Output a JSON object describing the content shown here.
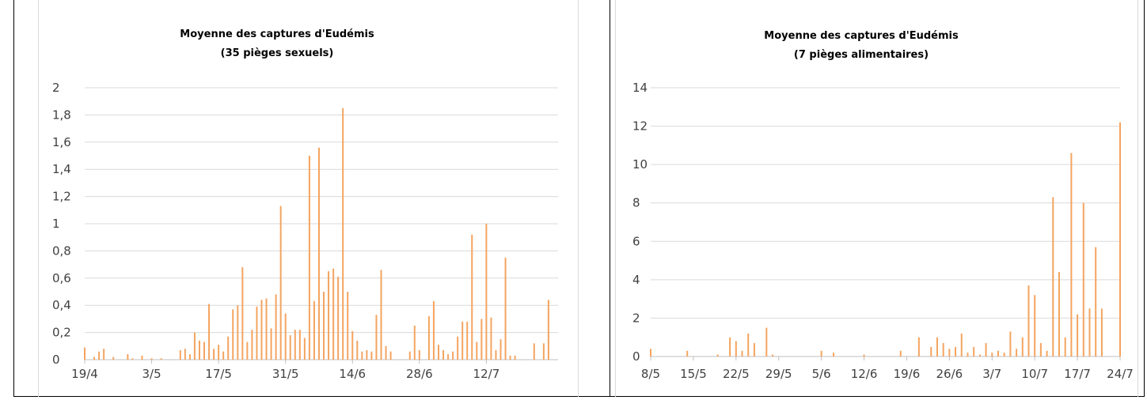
{
  "charts": [
    {
      "title_line1": "Moyenne des captures d'Eudémis",
      "title_line2": "(35 pièges sexuels)"
    },
    {
      "title_line1": "Moyenne des captures d'Eudémis",
      "title_line2": "(7 pièges alimentaires)"
    }
  ],
  "chart_data": [
    {
      "type": "bar",
      "title": "Moyenne des captures d'Eudémis (35 pièges sexuels)",
      "xlabel": "",
      "ylabel": "",
      "x_tick_labels": [
        "19/4",
        "3/5",
        "17/5",
        "31/5",
        "14/6",
        "28/6",
        "12/7"
      ],
      "x_tick_days": [
        109,
        123,
        137,
        151,
        165,
        179,
        193
      ],
      "y_tick_labels": [
        "0",
        "0,2",
        "0,4",
        "0,6",
        "0,8",
        "1",
        "1,2",
        "1,4",
        "1,6",
        "1,8",
        "2"
      ],
      "ylim": [
        0,
        2
      ],
      "x_range_days": [
        109,
        208
      ],
      "grid": true,
      "color": "#f4a460",
      "days": [
        109,
        111,
        112,
        113,
        115,
        118,
        119,
        121,
        123,
        125,
        129,
        130,
        131,
        132,
        133,
        134,
        135,
        136,
        137,
        138,
        139,
        140,
        141,
        142,
        143,
        144,
        145,
        146,
        147,
        148,
        149,
        150,
        151,
        152,
        153,
        154,
        155,
        156,
        157,
        158,
        159,
        160,
        161,
        162,
        163,
        164,
        165,
        166,
        167,
        168,
        169,
        170,
        171,
        172,
        173,
        177,
        178,
        179,
        181,
        182,
        183,
        184,
        185,
        186,
        187,
        188,
        189,
        190,
        191,
        192,
        193,
        194,
        195,
        196,
        197,
        198,
        199,
        203,
        205,
        206
      ],
      "values": [
        0.09,
        0.02,
        0.06,
        0.08,
        0.02,
        0.04,
        0.01,
        0.03,
        0.01,
        0.01,
        0.07,
        0.08,
        0.04,
        0.2,
        0.14,
        0.13,
        0.41,
        0.08,
        0.11,
        0.06,
        0.17,
        0.37,
        0.4,
        0.68,
        0.13,
        0.22,
        0.39,
        0.44,
        0.45,
        0.23,
        0.48,
        1.13,
        0.34,
        0.18,
        0.22,
        0.22,
        0.16,
        1.5,
        0.43,
        1.56,
        0.5,
        0.65,
        0.67,
        0.61,
        1.85,
        0.5,
        0.21,
        0.14,
        0.06,
        0.07,
        0.06,
        0.33,
        0.66,
        0.1,
        0.06,
        0.06,
        0.25,
        0.07,
        0.32,
        0.43,
        0.11,
        0.07,
        0.04,
        0.06,
        0.17,
        0.28,
        0.28,
        0.92,
        0.13,
        0.3,
        1.0,
        0.31,
        0.07,
        0.15,
        0.75,
        0.03,
        0.03,
        0.12,
        0.12,
        0.44
      ]
    },
    {
      "type": "bar",
      "title": "Moyenne des captures d'Eudémis (7 pièges alimentaires)",
      "xlabel": "",
      "ylabel": "",
      "x_tick_labels": [
        "8/5",
        "15/5",
        "22/5",
        "29/5",
        "5/6",
        "12/6",
        "19/6",
        "26/6",
        "3/7",
        "10/7",
        "17/7",
        "24/7"
      ],
      "x_tick_days": [
        128,
        135,
        142,
        149,
        156,
        163,
        170,
        177,
        184,
        191,
        198,
        205
      ],
      "y_tick_labels": [
        "0",
        "2",
        "4",
        "6",
        "8",
        "10",
        "12",
        "14"
      ],
      "ylim": [
        0,
        14
      ],
      "x_range_days": [
        128,
        205
      ],
      "grid": true,
      "color": "#f4a460",
      "days": [
        128,
        134,
        139,
        141,
        142,
        143,
        144,
        145,
        147,
        148,
        156,
        158,
        163,
        169,
        172,
        174,
        175,
        176,
        177,
        178,
        179,
        180,
        181,
        182,
        183,
        184,
        185,
        186,
        187,
        188,
        189,
        190,
        191,
        192,
        193,
        194,
        195,
        196,
        197,
        198,
        199,
        200,
        201,
        202,
        205
      ],
      "values": [
        0.4,
        0.3,
        0.1,
        1.0,
        0.8,
        0.3,
        1.2,
        0.7,
        1.5,
        0.1,
        0.3,
        0.2,
        0.1,
        0.3,
        1.0,
        0.5,
        1.0,
        0.7,
        0.4,
        0.5,
        1.2,
        0.2,
        0.5,
        0.1,
        0.7,
        0.2,
        0.3,
        0.2,
        1.3,
        0.4,
        1.0,
        3.7,
        3.2,
        0.7,
        0.3,
        8.3,
        4.4,
        1.0,
        10.6,
        2.2,
        8.0,
        2.5,
        5.7,
        2.5,
        12.2
      ]
    }
  ]
}
